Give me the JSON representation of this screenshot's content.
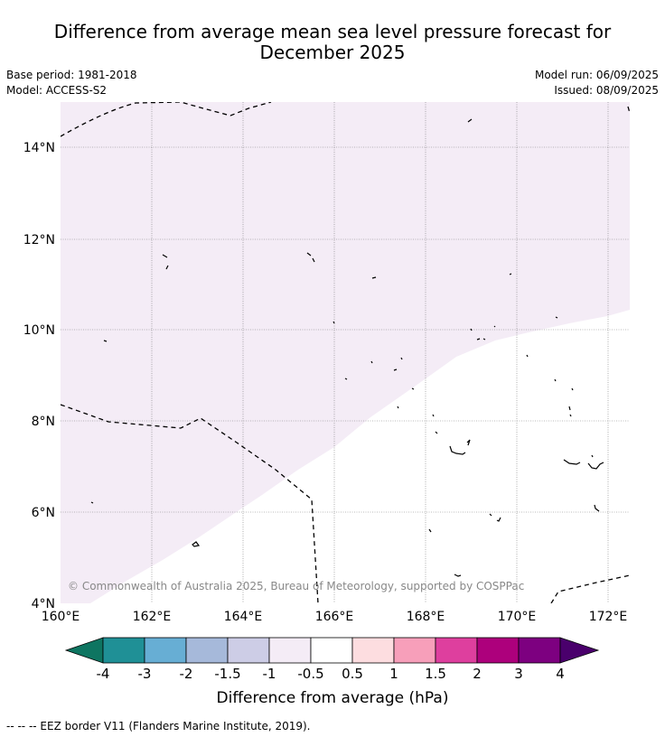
{
  "title": {
    "line1": "Difference from average mean sea level pressure forecast for",
    "line2": "December 2025"
  },
  "info": {
    "base_period": "Base period: 1981-2018",
    "model": "Model: ACCESS-S2",
    "model_run": "Model run: 06/09/2025",
    "issued": "Issued: 08/09/2025"
  },
  "map": {
    "lon_ticks": [
      "160°E",
      "162°E",
      "164°E",
      "166°E",
      "168°E",
      "170°E",
      "172°E"
    ],
    "lat_ticks": [
      "14°N",
      "12°N",
      "10°N",
      "8°N",
      "6°N",
      "4°N"
    ],
    "copyright": "© Commonwealth of Australia 2025, Bureau of Meteorology, supported by COSPPac",
    "shaded_category": "-1 to -0.5",
    "shaded_color": "#f4ecf6"
  },
  "colorbar": {
    "label": "Difference from average (hPa)",
    "tick_labels": [
      "-4",
      "-3",
      "-2",
      "-1.5",
      "-1",
      "-0.5",
      "0.5",
      "1",
      "1.5",
      "2",
      "3",
      "4"
    ],
    "colors": [
      "#0e7561",
      "#1f9096",
      "#67aed4",
      "#a6b9da",
      "#cdcde6",
      "#f4ecf6",
      "#ffffff",
      "#fddde0",
      "#f79fba",
      "#de3f9e",
      "#ad007c",
      "#7d0080",
      "#4a006c"
    ]
  },
  "footer": {
    "legend_text": "--  --  -- EEZ border V11 (Flanders Marine Institute, 2019)."
  }
}
